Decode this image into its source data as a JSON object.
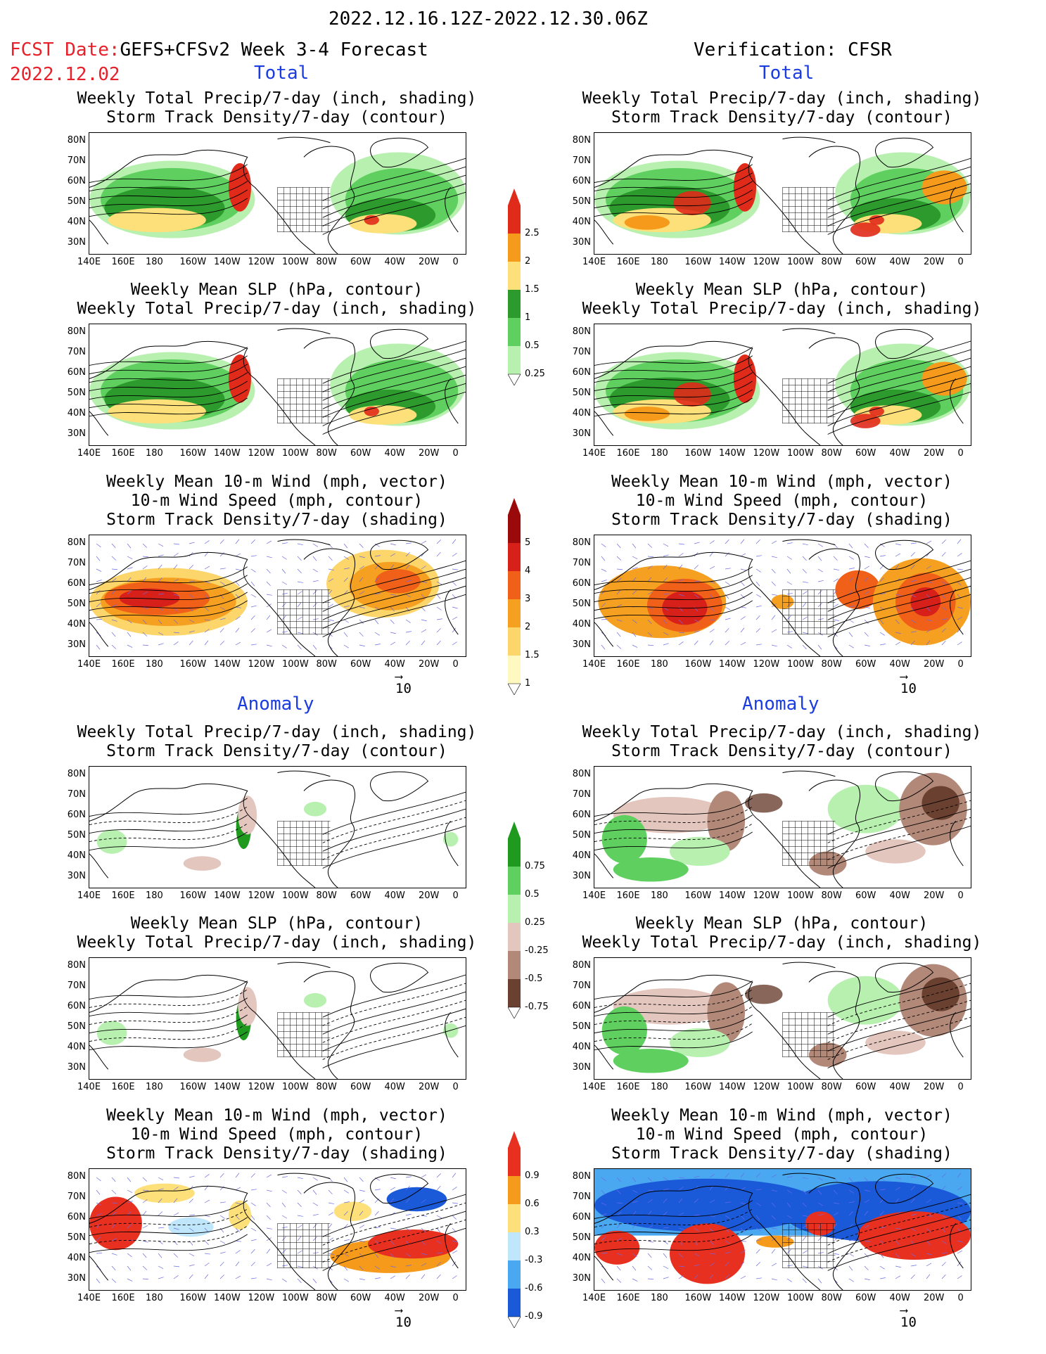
{
  "header": {
    "period": "2022.12.16.12Z-2022.12.30.06Z",
    "fcst_label": "FCST Date:",
    "fcst_model": "GEFS+CFSv2 Week 3-4 Forecast",
    "fcst_date": "2022.12.02",
    "verification": "Verification: CFSR"
  },
  "sections": {
    "total": "Total",
    "anomaly": "Anomaly"
  },
  "titles": {
    "precip_storm": [
      "Weekly Total Precip/7-day (inch, shading)",
      "Storm Track Density/7-day (contour)"
    ],
    "slp_precip": [
      "Weekly Mean SLP (hPa, contour)",
      "Weekly Total Precip/7-day (inch, shading)"
    ],
    "wind_storm": [
      "Weekly Mean 10-m Wind (mph, vector)",
      "10-m Wind Speed (mph, contour)",
      "Storm Track Density/7-day (shading)"
    ]
  },
  "axes": {
    "lat": [
      "80N",
      "70N",
      "60N",
      "50N",
      "40N",
      "30N"
    ],
    "lon": [
      "140E",
      "160E",
      "180",
      "160W",
      "140W",
      "120W",
      "100W",
      "80W",
      "60W",
      "40W",
      "20W",
      "0"
    ]
  },
  "vector_ref": "10",
  "colorbars": {
    "precip_total": {
      "labels": [
        "2.5",
        "2",
        "1.5",
        "1",
        "0.5",
        "0.25"
      ],
      "colors": [
        "#e02a1a",
        "#f59a1a",
        "#fde07a",
        "#2c9a2c",
        "#5fd05f",
        "#b8f0b0"
      ]
    },
    "storm_total": {
      "labels": [
        "5",
        "4",
        "3",
        "2",
        "1.5",
        "1"
      ],
      "colors": [
        "#9a0a0a",
        "#d8201a",
        "#f06018",
        "#f5a020",
        "#fcd66a",
        "#fff8c0"
      ]
    },
    "precip_anom": {
      "labels": [
        "0.75",
        "0.5",
        "0.25",
        "-0.25",
        "-0.5",
        "-0.75"
      ],
      "colors": [
        "#1f9a1f",
        "#5fd05f",
        "#b8f0b0",
        "#e3c6bd",
        "#b28878",
        "#6a4030"
      ]
    },
    "storm_anom": {
      "labels": [
        "0.9",
        "0.6",
        "0.3",
        "-0.3",
        "-0.6",
        "-0.9"
      ],
      "colors": [
        "#e83020",
        "#f59a1a",
        "#fde07a",
        "#bfe6fa",
        "#4aa8f0",
        "#1a5ad8"
      ]
    }
  },
  "panel_colors": {
    "land_line": "#000000",
    "vector": "#6a6ae8"
  }
}
